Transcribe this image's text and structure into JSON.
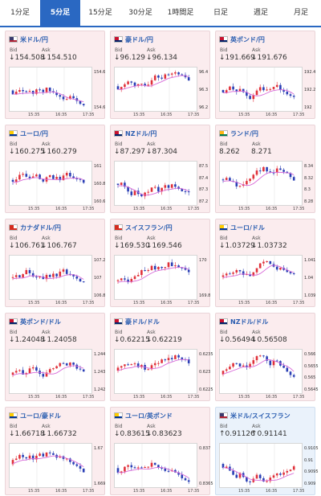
{
  "tabs": [
    {
      "label": "1分足",
      "active": false
    },
    {
      "label": "5分足",
      "active": true
    },
    {
      "label": "15分足",
      "active": false
    },
    {
      "label": "30分足",
      "active": false
    },
    {
      "label": "1時間足",
      "active": false
    },
    {
      "label": "日足",
      "active": false
    },
    {
      "label": "週足",
      "active": false
    },
    {
      "label": "月足",
      "active": false
    }
  ],
  "labels": {
    "bid": "Bid",
    "ask": "Ask"
  },
  "pairs": [
    {
      "title": "米ドル/円",
      "bid": "↓154.508",
      "ask": "↓154.510",
      "dir": "down",
      "yticks": [
        "154.6",
        "154.6"
      ],
      "xticks": [
        "15:35",
        "16:35",
        "17:35"
      ],
      "flag": [
        "#b22234",
        "#3c3b6e"
      ]
    },
    {
      "title": "豪ドル/円",
      "bid": "↓96.129",
      "ask": "↓96.134",
      "dir": "down",
      "yticks": [
        "96.4",
        "96.3",
        "96.2"
      ],
      "xticks": [
        "15:35",
        "16:35",
        "17:35"
      ],
      "flag": [
        "#012169",
        "#c8102e"
      ]
    },
    {
      "title": "英ポンド/円",
      "bid": "↓191.669",
      "ask": "↓191.676",
      "dir": "down",
      "yticks": [
        "192.4",
        "192.2",
        "192"
      ],
      "xticks": [
        "15:35",
        "16:35",
        "17:35"
      ],
      "flag": [
        "#012169",
        "#c8102e"
      ]
    },
    {
      "title": "ユーロ/円",
      "bid": "↓160.275",
      "ask": "↓160.279",
      "dir": "down",
      "yticks": [
        "161",
        "160.8",
        "160.6"
      ],
      "xticks": [
        "15:35",
        "16:35",
        "17:35"
      ],
      "flag": [
        "#003399",
        "#ffcc00"
      ]
    },
    {
      "title": "NZドル/円",
      "bid": "↓87.297",
      "ask": "↓87.304",
      "dir": "down",
      "yticks": [
        "87.5",
        "87.4",
        "87.3",
        "87.2"
      ],
      "xticks": [
        "15:35",
        "16:35",
        "17:35"
      ],
      "flag": [
        "#012169",
        "#c8102e"
      ]
    },
    {
      "title": "ランド/円",
      "bid": "8.262",
      "ask": "8.271",
      "dir": "flat",
      "yticks": [
        "8.34",
        "8.32",
        "8.3",
        "8.28"
      ],
      "xticks": [
        "15:35",
        "16:35",
        "17:35"
      ],
      "flag": [
        "#007a4d",
        "#ffb612"
      ]
    },
    {
      "title": "カナダドル/円",
      "bid": "↓106.761",
      "ask": "↓106.767",
      "dir": "down",
      "yticks": [
        "107.2",
        "107",
        "106.8"
      ],
      "xticks": [
        "15:35",
        "16:35",
        "17:35"
      ],
      "flag": [
        "#d52b1e",
        "#d52b1e"
      ]
    },
    {
      "title": "スイスフラン/円",
      "bid": "↓169.530",
      "ask": "↓169.546",
      "dir": "down",
      "yticks": [
        "170",
        "169.8"
      ],
      "xticks": [
        "15:35",
        "16:35",
        "17:35"
      ],
      "flag": [
        "#d52b1e",
        "#d52b1e"
      ]
    },
    {
      "title": "ユーロ/ドル",
      "bid": "↓1.03729",
      "ask": "↓1.03732",
      "dir": "down",
      "yticks": [
        "1.041",
        "1.04",
        "1.039"
      ],
      "xticks": [
        "15:35",
        "16:35",
        "17:35"
      ],
      "flag": [
        "#003399",
        "#ffcc00"
      ]
    },
    {
      "title": "英ポンド/ドル",
      "bid": "↓1.24048",
      "ask": "↓1.24058",
      "dir": "down",
      "yticks": [
        "1.244",
        "1.243",
        "1.242"
      ],
      "xticks": [
        "15:35",
        "16:35",
        "17:35"
      ],
      "flag": [
        "#012169",
        "#c8102e"
      ]
    },
    {
      "title": "豪ドル/ドル",
      "bid": "↓0.62215",
      "ask": "↓0.62219",
      "dir": "down",
      "yticks": [
        "0.6235",
        "0.623",
        "0.6225"
      ],
      "xticks": [
        "15:35",
        "16:35",
        "17:35"
      ],
      "flag": [
        "#012169",
        "#c8102e"
      ]
    },
    {
      "title": "NZドル/ドル",
      "bid": "↓0.56494",
      "ask": "↓0.56508",
      "dir": "down",
      "yticks": [
        "0.566",
        "0.5655",
        "0.565",
        "0.5645"
      ],
      "xticks": [
        "15:35",
        "16:35",
        "17:35"
      ],
      "flag": [
        "#012169",
        "#c8102e"
      ]
    },
    {
      "title": "ユーロ/豪ドル",
      "bid": "↓1.66718",
      "ask": "↓1.66732",
      "dir": "down",
      "yticks": [
        "1.67",
        "1.669"
      ],
      "xticks": [
        "15:35",
        "16:35",
        "17:35"
      ],
      "flag": [
        "#003399",
        "#ffcc00"
      ]
    },
    {
      "title": "ユーロ/英ポンド",
      "bid": "↓0.83615",
      "ask": "↓0.83623",
      "dir": "down",
      "yticks": [
        "0.837",
        "0.8365"
      ],
      "xticks": [
        "15:35",
        "16:35",
        "17:35"
      ],
      "flag": [
        "#003399",
        "#ffcc00"
      ]
    },
    {
      "title": "米ドル/スイスフラン",
      "bid": "↑0.91126",
      "ask": "↑0.91141",
      "dir": "up",
      "yticks": [
        "0.9105",
        "0.91",
        "0.9095",
        "0.909"
      ],
      "xticks": [
        "15:35",
        "16:35",
        "17:35"
      ],
      "flag": [
        "#b22234",
        "#3c3b6e"
      ]
    }
  ],
  "colors": {
    "up_candle": "#e0313a",
    "down_candle": "#2a3fb5",
    "ma_line": "#d86ad8",
    "tab_active": "#2a68c2"
  }
}
